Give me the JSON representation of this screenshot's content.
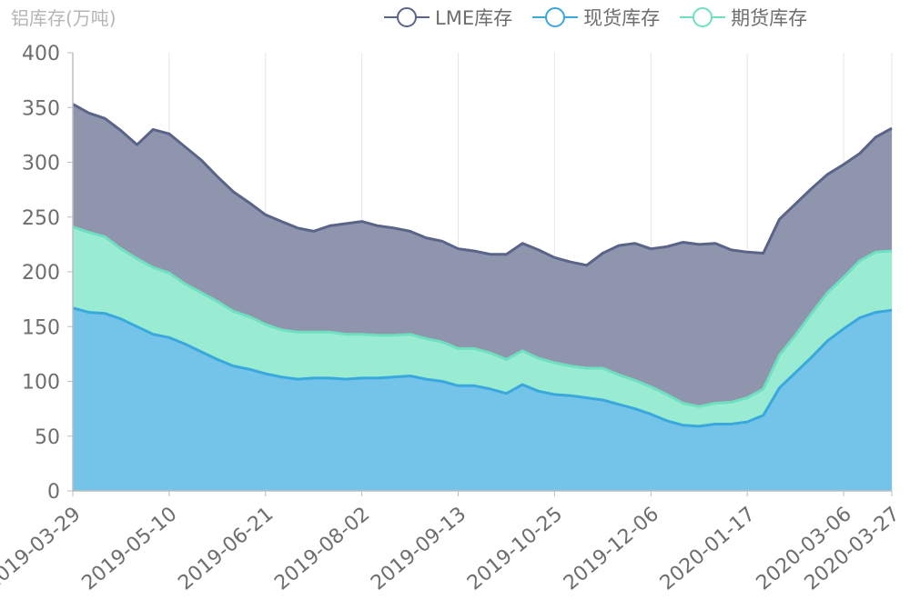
{
  "chart_data": {
    "type": "area",
    "ylabel": "铝库存(万吨)",
    "ylim": [
      0,
      400
    ],
    "yticks": [
      0,
      50,
      100,
      150,
      200,
      250,
      300,
      350,
      400
    ],
    "x_tick_labels": [
      "2019-03-29",
      "2019-05-10",
      "2019-06-21",
      "2019-08-02",
      "2019-09-13",
      "2019-10-25",
      "2019-12-06",
      "2020-01-17",
      "2020-03-06",
      "2020-03-27"
    ],
    "x_tick_index": [
      0,
      6,
      12,
      18,
      24,
      30,
      36,
      42,
      48,
      51
    ],
    "legend_position": "top-center",
    "grid": "vertical",
    "series": [
      {
        "name": "LME库存",
        "color": "#5a6488",
        "fill": "#8e95ad",
        "values": [
          353,
          345,
          340,
          329,
          316,
          330,
          326,
          314,
          302,
          287,
          273,
          263,
          252,
          246,
          240,
          237,
          242,
          244,
          246,
          242,
          240,
          237,
          231,
          228,
          221,
          219,
          216,
          216,
          226,
          220,
          213,
          209,
          206,
          217,
          224,
          226,
          221,
          223,
          227,
          225,
          226,
          220,
          218,
          217,
          248,
          262,
          276,
          289,
          298,
          308,
          323,
          331
        ]
      },
      {
        "name": "现货库存",
        "color": "#3aa8dd",
        "fill": "#74c4ea",
        "values": [
          167,
          163,
          162,
          157,
          150,
          143,
          140,
          134,
          127,
          120,
          114,
          111,
          107,
          104,
          102,
          103,
          103,
          102,
          103,
          103,
          104,
          105,
          102,
          100,
          96,
          96,
          93,
          89,
          97,
          91,
          88,
          87,
          85,
          83,
          79,
          75,
          70,
          64,
          60,
          59,
          61,
          61,
          63,
          69,
          94,
          108,
          122,
          137,
          148,
          158,
          163,
          165
        ]
      },
      {
        "name": "期货库存",
        "color": "#6ee0c0",
        "fill": "#99ebd2",
        "values": [
          74,
          73,
          70,
          64,
          62,
          61,
          59,
          55,
          54,
          53,
          50,
          48,
          45,
          43,
          43,
          42,
          42,
          41,
          40,
          39,
          38,
          38,
          37,
          36,
          34,
          34,
          33,
          31,
          31,
          30,
          29,
          27,
          27,
          29,
          27,
          26,
          25,
          24,
          20,
          18,
          19,
          20,
          22,
          24,
          30,
          34,
          40,
          44,
          47,
          52,
          55,
          54
        ]
      }
    ]
  }
}
